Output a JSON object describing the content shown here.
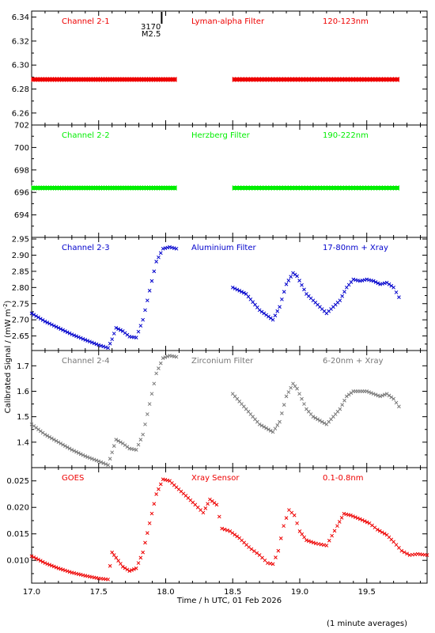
{
  "figure": {
    "ylabel": "Calibrated Signal / (mW m",
    "ylabel_sup": "-2",
    "ylabel_close": ")",
    "xlabel": "Time / h UTC, 01 Feb 2026",
    "footnote": "(1 minute averages)",
    "event_marker": {
      "x": 17.97,
      "label_top": "3170",
      "label_bottom": "M2.5"
    }
  },
  "chart_data": [
    {
      "type": "scatter",
      "channel": "Channel 2-1",
      "filter": "Lyman-alpha Filter",
      "band": "120-123nm",
      "color": "#ee0000",
      "marker": "dot",
      "xlim": [
        17.0,
        19.95
      ],
      "ylim": [
        6.25,
        6.345
      ],
      "yticks": [
        6.26,
        6.28,
        6.3,
        6.32,
        6.34
      ],
      "yticklabels": [
        "6.26",
        "6.28",
        "6.30",
        "6.32",
        "6.34"
      ],
      "series": [
        {
          "x": [
            17.0,
            18.08
          ],
          "y": [
            6.288,
            6.288
          ]
        },
        {
          "x": [
            18.5,
            19.74
          ],
          "y": [
            6.288,
            6.288
          ]
        }
      ]
    },
    {
      "type": "scatter",
      "channel": "Channel 2-2",
      "filter": "Herzberg Filter",
      "band": "190-222nm",
      "color": "#00ee00",
      "marker": "dot",
      "xlim": [
        17.0,
        19.95
      ],
      "ylim": [
        692,
        702
      ],
      "yticks": [
        694,
        696,
        698,
        700,
        702
      ],
      "yticklabels": [
        "694",
        "696",
        "698",
        "700",
        "702"
      ],
      "series": [
        {
          "x": [
            17.0,
            18.08
          ],
          "y": [
            696.4,
            696.4
          ]
        },
        {
          "x": [
            18.5,
            19.74
          ],
          "y": [
            696.4,
            696.4
          ]
        }
      ]
    },
    {
      "type": "scatter",
      "channel": "Channel 2-3",
      "filter": "Aluminium Filter",
      "band": "17-80nm + Xray",
      "color": "#0000cc",
      "marker": "x",
      "xlim": [
        17.0,
        19.95
      ],
      "ylim": [
        2.605,
        2.955
      ],
      "yticks": [
        2.65,
        2.7,
        2.75,
        2.8,
        2.85,
        2.9,
        2.95
      ],
      "yticklabels": [
        "2.65",
        "2.70",
        "2.75",
        "2.80",
        "2.85",
        "2.90",
        "2.95"
      ],
      "series": [
        {
          "x": [
            17.0,
            17.1,
            17.2,
            17.3,
            17.4,
            17.5,
            17.57,
            17.6,
            17.63,
            17.68,
            17.73,
            17.78,
            17.83,
            17.88,
            17.93,
            17.98,
            18.03,
            18.08
          ],
          "y": [
            2.72,
            2.695,
            2.675,
            2.655,
            2.638,
            2.622,
            2.613,
            2.64,
            2.675,
            2.665,
            2.648,
            2.645,
            2.7,
            2.79,
            2.88,
            2.92,
            2.925,
            2.92
          ]
        },
        {
          "x": [
            18.5,
            18.6,
            18.7,
            18.8,
            18.85,
            18.9,
            18.95,
            18.98,
            19.05,
            19.1,
            19.2,
            19.3,
            19.35,
            19.4,
            19.45,
            19.5,
            19.55,
            19.6,
            19.65,
            19.7,
            19.74
          ],
          "y": [
            2.8,
            2.78,
            2.73,
            2.7,
            2.74,
            2.81,
            2.845,
            2.835,
            2.78,
            2.76,
            2.72,
            2.76,
            2.8,
            2.825,
            2.82,
            2.825,
            2.82,
            2.81,
            2.815,
            2.8,
            2.77
          ]
        }
      ]
    },
    {
      "type": "scatter",
      "channel": "Channel 2-4",
      "filter": "Zirconium Filter",
      "band": "6-20nm + Xray",
      "color": "#777777",
      "marker": "x",
      "xlim": [
        17.0,
        19.95
      ],
      "ylim": [
        1.3,
        1.76
      ],
      "yticks": [
        1.4,
        1.5,
        1.6,
        1.7
      ],
      "yticklabels": [
        "1.4",
        "1.5",
        "1.6",
        "1.7"
      ],
      "series": [
        {
          "x": [
            17.0,
            17.1,
            17.2,
            17.3,
            17.4,
            17.5,
            17.57,
            17.6,
            17.63,
            17.68,
            17.73,
            17.78,
            17.83,
            17.88,
            17.93,
            17.98,
            18.03,
            18.08
          ],
          "y": [
            1.47,
            1.43,
            1.4,
            1.37,
            1.345,
            1.325,
            1.31,
            1.36,
            1.41,
            1.395,
            1.375,
            1.37,
            1.43,
            1.55,
            1.67,
            1.73,
            1.74,
            1.735
          ]
        },
        {
          "x": [
            18.5,
            18.6,
            18.7,
            18.8,
            18.85,
            18.9,
            18.95,
            18.98,
            19.05,
            19.1,
            19.2,
            19.3,
            19.35,
            19.4,
            19.45,
            19.5,
            19.55,
            19.6,
            19.65,
            19.7,
            19.74
          ],
          "y": [
            1.59,
            1.53,
            1.47,
            1.44,
            1.48,
            1.58,
            1.63,
            1.61,
            1.53,
            1.5,
            1.47,
            1.53,
            1.58,
            1.6,
            1.6,
            1.6,
            1.59,
            1.58,
            1.59,
            1.57,
            1.54
          ]
        }
      ]
    },
    {
      "type": "scatter",
      "channel": "GOES",
      "filter": "Xray Sensor",
      "band": "0.1-0.8nm",
      "color": "#ee0000",
      "marker": "x",
      "xlim": [
        17.0,
        19.95
      ],
      "ylim": [
        0.0057,
        0.0275
      ],
      "yticks": [
        0.01,
        0.015,
        0.02,
        0.025
      ],
      "yticklabels": [
        "0.010",
        "0.015",
        "0.020",
        "0.025"
      ],
      "series": [
        {
          "x": [
            17.0,
            17.1,
            17.2,
            17.3,
            17.4,
            17.5,
            17.57,
            17.6,
            17.63,
            17.68,
            17.73,
            17.78,
            17.83,
            17.88,
            17.93,
            17.98,
            18.03,
            18.08,
            18.15,
            18.22,
            18.28,
            18.33,
            18.38,
            18.42,
            18.48,
            18.55,
            18.62,
            18.7,
            18.76,
            18.8,
            18.84,
            18.88,
            18.92,
            18.96,
            19.0,
            19.05,
            19.12,
            19.2,
            19.28,
            19.33,
            19.38,
            19.45,
            19.52,
            19.58,
            19.65,
            19.7,
            19.76,
            19.82,
            19.88,
            19.95
          ],
          "y": [
            0.0108,
            0.0095,
            0.0085,
            0.0077,
            0.0071,
            0.0066,
            0.0064,
            0.0115,
            0.0105,
            0.0088,
            0.008,
            0.0085,
            0.0115,
            0.017,
            0.0225,
            0.0253,
            0.025,
            0.0238,
            0.0222,
            0.0205,
            0.019,
            0.0215,
            0.0205,
            0.016,
            0.0155,
            0.0142,
            0.0125,
            0.011,
            0.0095,
            0.0093,
            0.0118,
            0.0165,
            0.0195,
            0.0185,
            0.0155,
            0.0138,
            0.0132,
            0.0128,
            0.0165,
            0.0188,
            0.0185,
            0.0178,
            0.017,
            0.0158,
            0.0148,
            0.0135,
            0.0118,
            0.011,
            0.0112,
            0.011
          ]
        }
      ]
    }
  ]
}
